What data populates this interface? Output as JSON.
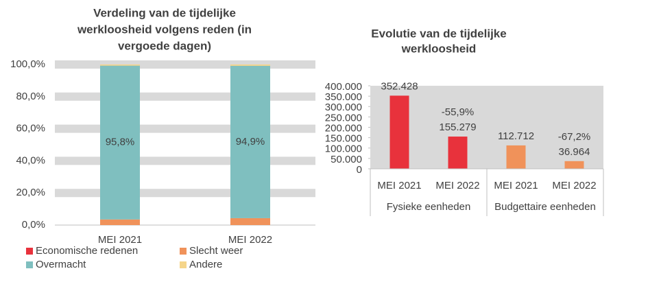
{
  "chart_data": [
    {
      "type": "stacked_bar",
      "title": [
        "Verdeling van de tijdelijke",
        "werkloosheid volgens reden (in",
        "vergoede dagen)"
      ],
      "categories": [
        "MEI 2021",
        "MEI 2022"
      ],
      "series": [
        {
          "name": "Economische redenen",
          "color": "#e8323c",
          "values": [
            0,
            0
          ]
        },
        {
          "name": "Slecht weer",
          "color": "#f0925a",
          "values": [
            3.5,
            4.3
          ]
        },
        {
          "name": "Overmacht",
          "color": "#7fbfbf",
          "values": [
            95.8,
            94.9
          ],
          "value_labels": [
            "95,8%",
            "94,9%"
          ]
        },
        {
          "name": "Andere",
          "color": "#f5d58a",
          "values": [
            0.7,
            0.8
          ]
        }
      ],
      "ylim": [
        0,
        100
      ],
      "yticks": [
        {
          "value": 0,
          "label": "0,0%"
        },
        {
          "value": 20,
          "label": "20,0%"
        },
        {
          "value": 40,
          "label": "40,0%"
        },
        {
          "value": 60,
          "label": "60,0%"
        },
        {
          "value": 80,
          "label": "80,0%"
        },
        {
          "value": 100,
          "label": "100,0%"
        }
      ],
      "grid": true
    },
    {
      "type": "bar",
      "title": [
        "Evolutie van de tijdelijke",
        "werkloosheid"
      ],
      "categories": [
        "MEI 2021",
        "MEI 2022",
        "MEI 2021",
        "MEI 2022"
      ],
      "groups": [
        "Fysieke eenheden",
        "Budgettaire eenheden"
      ],
      "values": [
        352428,
        155279,
        112712,
        36964
      ],
      "value_labels": [
        "352.428",
        "155.279",
        "112.712",
        "36.964"
      ],
      "change_labels": [
        null,
        "-55,9%",
        null,
        "-67,2%"
      ],
      "colors": [
        "#e8323c",
        "#e8323c",
        "#f0925a",
        "#f0925a"
      ],
      "ylim": [
        0,
        400000
      ],
      "yticks": [
        {
          "value": 0,
          "label": "0"
        },
        {
          "value": 50000,
          "label": "50.000"
        },
        {
          "value": 100000,
          "label": "100.000"
        },
        {
          "value": 150000,
          "label": "150.000"
        },
        {
          "value": 200000,
          "label": "200.000"
        },
        {
          "value": 250000,
          "label": "250.000"
        },
        {
          "value": 300000,
          "label": "300.000"
        },
        {
          "value": 350000,
          "label": "350.000"
        },
        {
          "value": 400000,
          "label": "400.000"
        }
      ]
    }
  ]
}
